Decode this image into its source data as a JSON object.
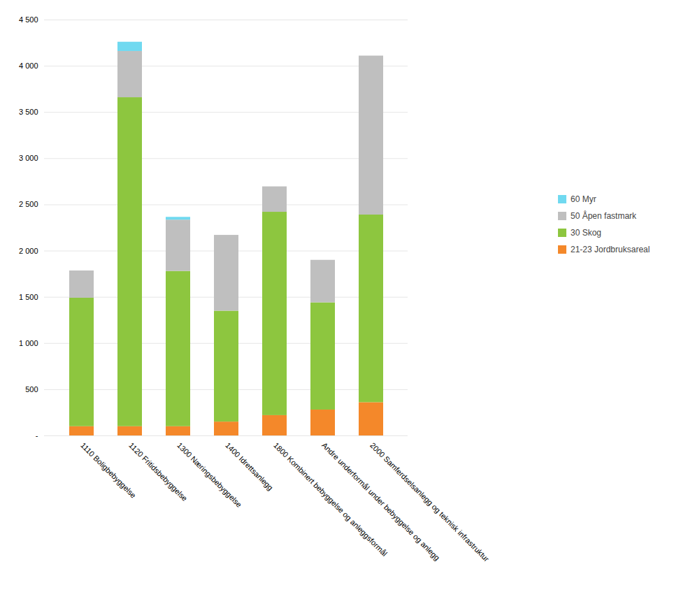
{
  "chart_data": {
    "type": "bar",
    "stacked": true,
    "categories": [
      "1110 Boligbebyggelse",
      "1120 Fritidsbebyggelse",
      "1300 Næringsbebyggelse",
      "1400 Idrettsanlegg",
      "1800 Kombinert bebyggelse og anleggsformål",
      "Andre underformål under bebyggelse og anlegg",
      "2000 Samferdselsanlegg og teknisk infrastruktur"
    ],
    "series": [
      {
        "name": "21-23 Jordbruksareal",
        "color": "#f4882a",
        "values": [
          100,
          100,
          100,
          150,
          220,
          280,
          360
        ]
      },
      {
        "name": "30 Skog",
        "color": "#8dc63f",
        "values": [
          1390,
          3560,
          1680,
          1200,
          2200,
          1160,
          2030
        ]
      },
      {
        "name": "50 Åpen fastmark",
        "color": "#bfbfbf",
        "values": [
          295,
          500,
          555,
          820,
          275,
          460,
          1720
        ]
      },
      {
        "name": "60 Myr",
        "color": "#70d9f0",
        "values": [
          0,
          100,
          30,
          0,
          0,
          0,
          0
        ]
      }
    ],
    "ylim": [
      0,
      4500
    ],
    "yticks": [
      {
        "value": 0,
        "label": "-"
      },
      500,
      {
        "value": 1000,
        "label": "1 000"
      },
      {
        "value": 1500,
        "label": "1 500"
      },
      {
        "value": 2000,
        "label": "2 000"
      },
      {
        "value": 2500,
        "label": "2 500"
      },
      {
        "value": 3000,
        "label": "3 000"
      },
      {
        "value": 3500,
        "label": "3 500"
      },
      {
        "value": 4000,
        "label": "4 000"
      },
      {
        "value": 4500,
        "label": "4 500"
      }
    ],
    "grid": true,
    "legend": "right"
  }
}
